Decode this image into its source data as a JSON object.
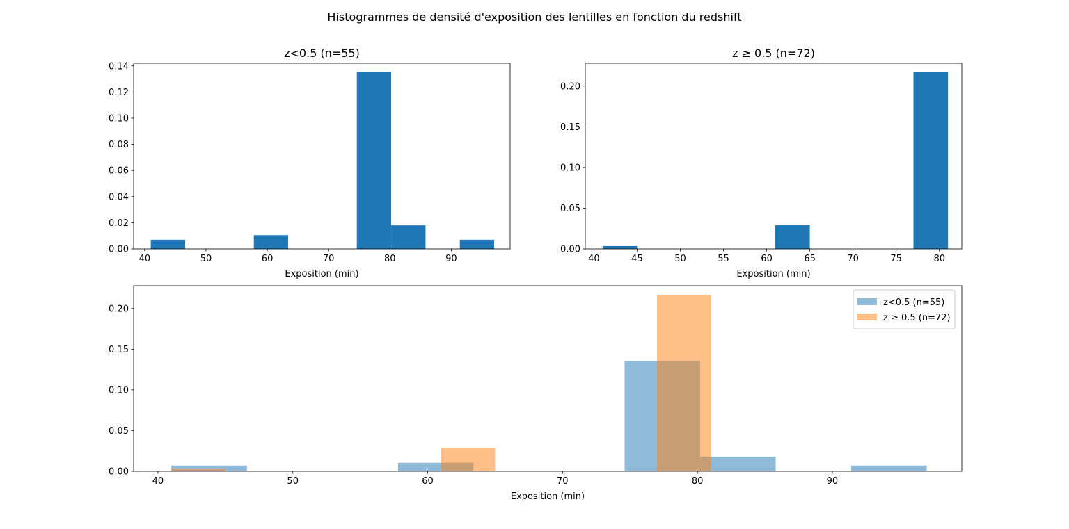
{
  "figure": {
    "suptitle": "Histogrammes de densité d'exposition des lentilles en fonction du redshift"
  },
  "colors": {
    "bar": "#1f77b4",
    "low_z": "#1f77b4",
    "high_z": "#ff7f0e"
  },
  "chart_data": [
    {
      "id": "low",
      "type": "bar",
      "title": "z<0.5 (n=55)",
      "xlabel": "Exposition (min)",
      "ylabel": "",
      "xlim": [
        38.2,
        99.6
      ],
      "ylim": [
        0,
        0.142
      ],
      "xticks": [
        40,
        50,
        60,
        70,
        80,
        90
      ],
      "yticks": [
        0.0,
        0.02,
        0.04,
        0.06,
        0.08,
        0.1,
        0.12,
        0.14
      ],
      "ytick_labels": [
        "0.00",
        "0.02",
        "0.04",
        "0.06",
        "0.08",
        "0.10",
        "0.12",
        "0.14"
      ],
      "grid": false,
      "series": [
        {
          "color": "#1f77b4",
          "alpha": 1,
          "bins": [
            {
              "x0": 41.0,
              "x1": 46.6,
              "value": 0.007
            },
            {
              "x0": 46.6,
              "x1": 52.2,
              "value": 0.0
            },
            {
              "x0": 52.2,
              "x1": 57.8,
              "value": 0.0
            },
            {
              "x0": 57.8,
              "x1": 63.4,
              "value": 0.0105
            },
            {
              "x0": 63.4,
              "x1": 69.0,
              "value": 0.0
            },
            {
              "x0": 69.0,
              "x1": 74.6,
              "value": 0.0
            },
            {
              "x0": 74.6,
              "x1": 80.2,
              "value": 0.1355
            },
            {
              "x0": 80.2,
              "x1": 85.8,
              "value": 0.018
            },
            {
              "x0": 85.8,
              "x1": 91.4,
              "value": 0.0
            },
            {
              "x0": 91.4,
              "x1": 97.0,
              "value": 0.007
            }
          ]
        }
      ]
    },
    {
      "id": "high",
      "type": "bar",
      "title": "z ≥ 0.5 (n=72)",
      "xlabel": "Exposition (min)",
      "ylabel": "",
      "xlim": [
        39.0,
        82.6
      ],
      "ylim": [
        0,
        0.228
      ],
      "xticks": [
        40,
        45,
        50,
        55,
        60,
        65,
        70,
        75,
        80
      ],
      "yticks": [
        0.0,
        0.05,
        0.1,
        0.15,
        0.2
      ],
      "ytick_labels": [
        "0.00",
        "0.05",
        "0.10",
        "0.15",
        "0.20"
      ],
      "grid": false,
      "series": [
        {
          "color": "#1f77b4",
          "alpha": 1,
          "bins": [
            {
              "x0": 41.0,
              "x1": 45.0,
              "value": 0.0035
            },
            {
              "x0": 45.0,
              "x1": 49.0,
              "value": 0.0
            },
            {
              "x0": 49.0,
              "x1": 53.0,
              "value": 0.0
            },
            {
              "x0": 53.0,
              "x1": 57.0,
              "value": 0.0
            },
            {
              "x0": 57.0,
              "x1": 61.0,
              "value": 0.0
            },
            {
              "x0": 61.0,
              "x1": 65.0,
              "value": 0.029
            },
            {
              "x0": 65.0,
              "x1": 69.0,
              "value": 0.0
            },
            {
              "x0": 69.0,
              "x1": 73.0,
              "value": 0.0
            },
            {
              "x0": 73.0,
              "x1": 77.0,
              "value": 0.0
            },
            {
              "x0": 77.0,
              "x1": 81.0,
              "value": 0.217
            }
          ]
        }
      ]
    },
    {
      "id": "combined",
      "type": "bar",
      "title": "",
      "xlabel": "Exposition (min)",
      "ylabel": "",
      "xlim": [
        38.2,
        99.6
      ],
      "ylim": [
        0,
        0.228
      ],
      "xticks": [
        40,
        50,
        60,
        70,
        80,
        90
      ],
      "yticks": [
        0.0,
        0.05,
        0.1,
        0.15,
        0.2
      ],
      "ytick_labels": [
        "0.00",
        "0.05",
        "0.10",
        "0.15",
        "0.20"
      ],
      "grid": false,
      "legend": "top-right",
      "series": [
        {
          "name": "z<0.5 (n=55)",
          "color": "#1f77b4",
          "alpha": 0.5,
          "bins": [
            {
              "x0": 41.0,
              "x1": 46.6,
              "value": 0.007
            },
            {
              "x0": 46.6,
              "x1": 52.2,
              "value": 0.0
            },
            {
              "x0": 52.2,
              "x1": 57.8,
              "value": 0.0
            },
            {
              "x0": 57.8,
              "x1": 63.4,
              "value": 0.0105
            },
            {
              "x0": 63.4,
              "x1": 69.0,
              "value": 0.0
            },
            {
              "x0": 69.0,
              "x1": 74.6,
              "value": 0.0
            },
            {
              "x0": 74.6,
              "x1": 80.2,
              "value": 0.1355
            },
            {
              "x0": 80.2,
              "x1": 85.8,
              "value": 0.018
            },
            {
              "x0": 85.8,
              "x1": 91.4,
              "value": 0.0
            },
            {
              "x0": 91.4,
              "x1": 97.0,
              "value": 0.007
            }
          ]
        },
        {
          "name": "z ≥ 0.5 (n=72)",
          "color": "#ff7f0e",
          "alpha": 0.5,
          "bins": [
            {
              "x0": 41.0,
              "x1": 45.0,
              "value": 0.0035
            },
            {
              "x0": 45.0,
              "x1": 49.0,
              "value": 0.0
            },
            {
              "x0": 49.0,
              "x1": 53.0,
              "value": 0.0
            },
            {
              "x0": 53.0,
              "x1": 57.0,
              "value": 0.0
            },
            {
              "x0": 57.0,
              "x1": 61.0,
              "value": 0.0
            },
            {
              "x0": 61.0,
              "x1": 65.0,
              "value": 0.029
            },
            {
              "x0": 65.0,
              "x1": 69.0,
              "value": 0.0
            },
            {
              "x0": 69.0,
              "x1": 73.0,
              "value": 0.0
            },
            {
              "x0": 73.0,
              "x1": 77.0,
              "value": 0.0
            },
            {
              "x0": 77.0,
              "x1": 81.0,
              "value": 0.217
            }
          ]
        }
      ]
    }
  ]
}
